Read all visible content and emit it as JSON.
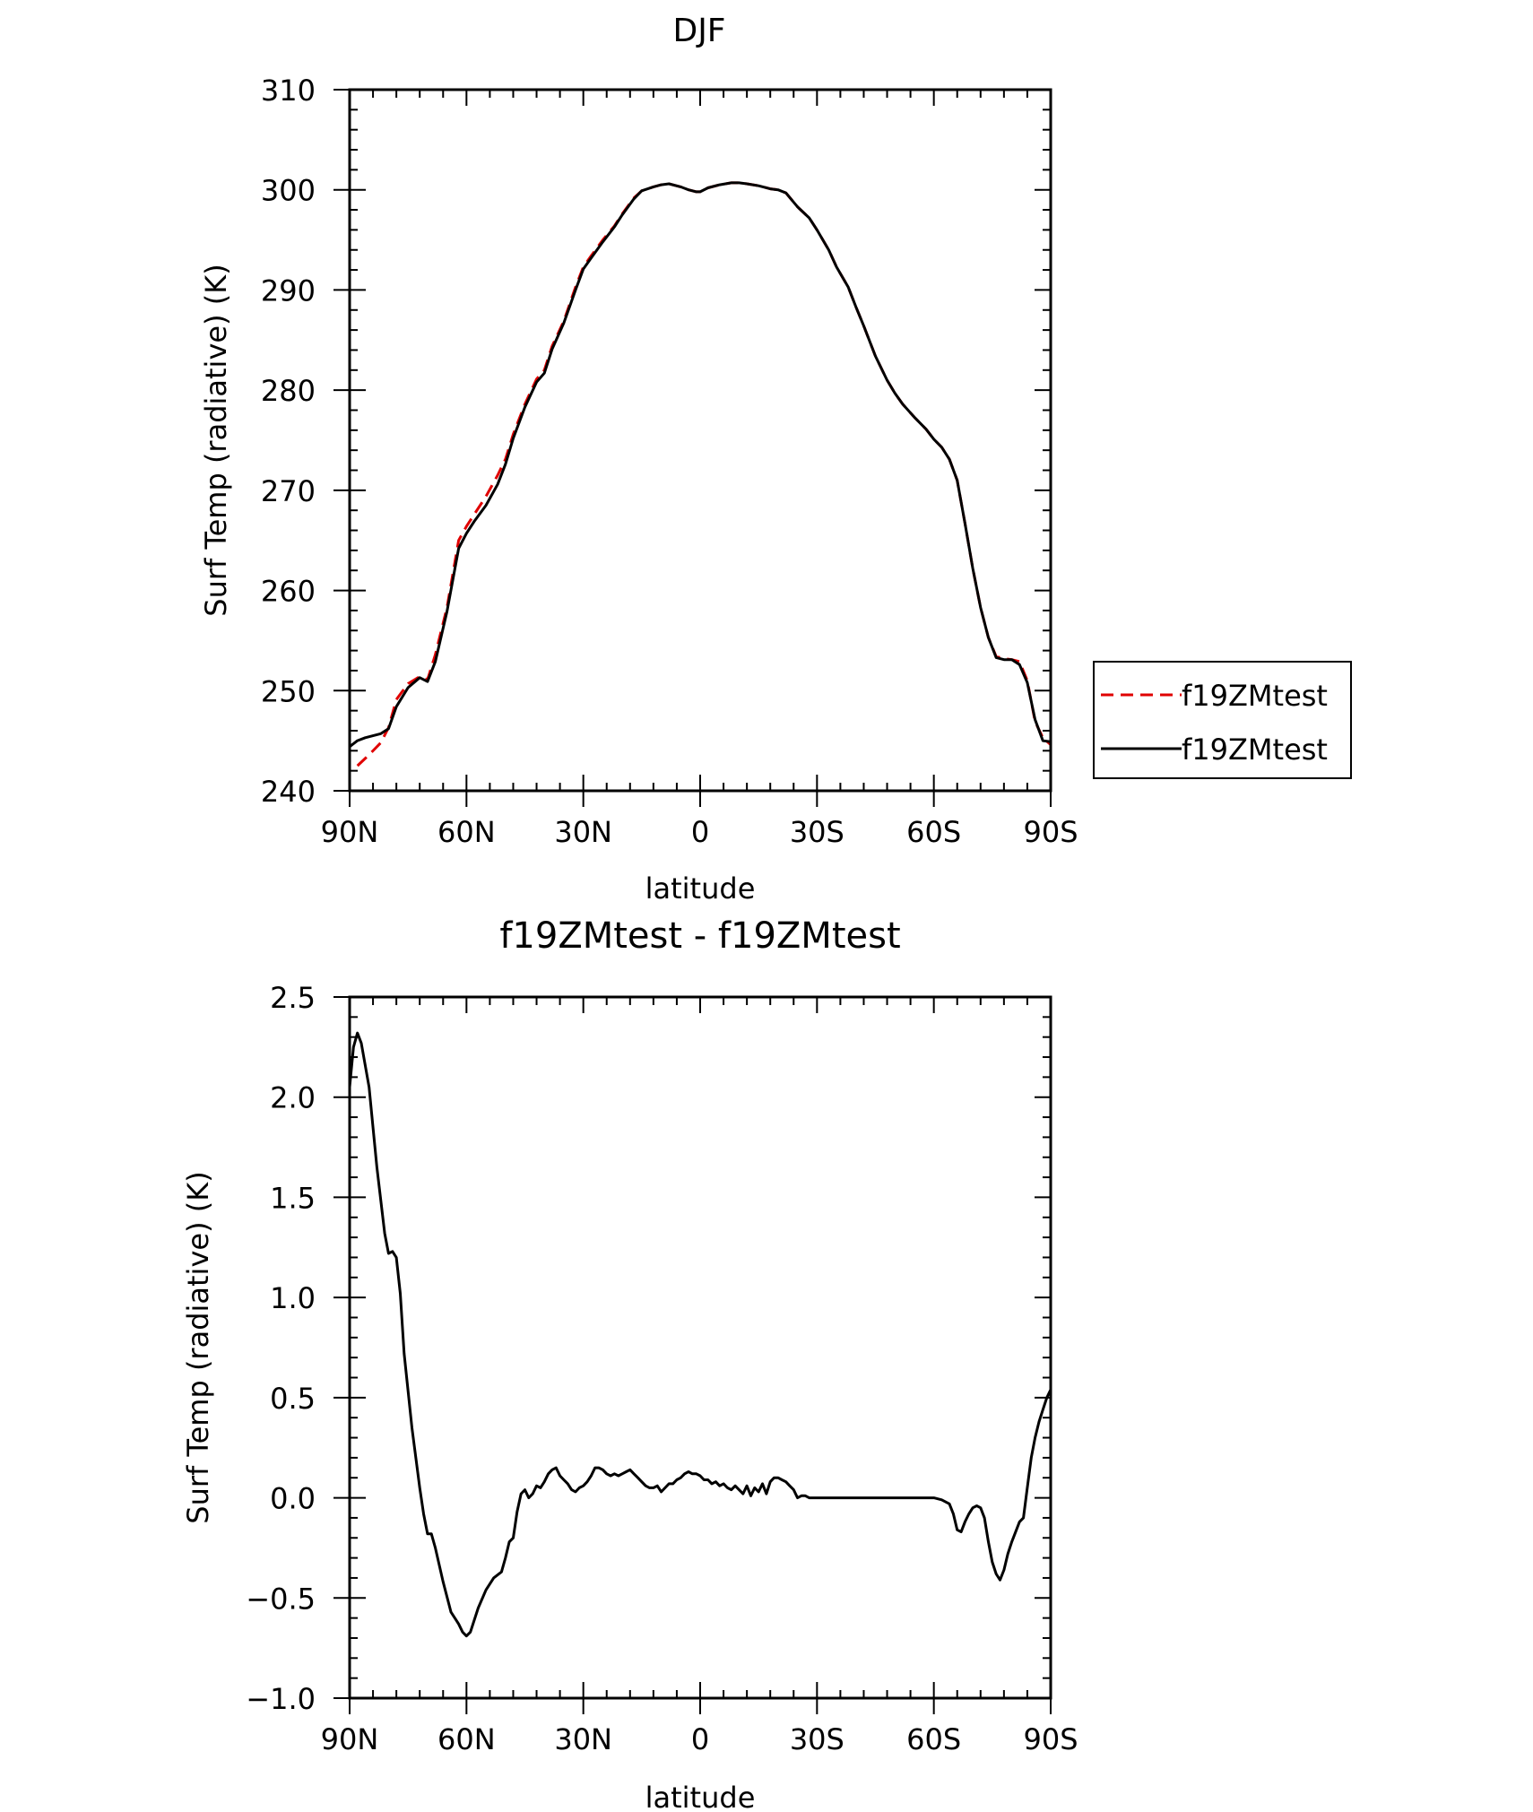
{
  "chart_data": [
    {
      "type": "line",
      "title": "DJF",
      "xlabel": "latitude",
      "ylabel": "Surf Temp (radiative) (K)",
      "xlim": [
        90,
        -90
      ],
      "ylim": [
        240,
        310
      ],
      "x_ticks": [
        90,
        60,
        30,
        0,
        -30,
        -60,
        -90
      ],
      "x_tick_labels": [
        "90N",
        "60N",
        "30N",
        "0",
        "30S",
        "60S",
        "90S"
      ],
      "y_ticks": [
        240,
        250,
        260,
        270,
        280,
        290,
        300,
        310
      ],
      "y_tick_labels": [
        "240",
        "250",
        "260",
        "270",
        "280",
        "290",
        "300",
        "310"
      ],
      "legend_position": "right",
      "series": [
        {
          "name": "f19ZMtest",
          "color": "#e00000",
          "style": "dashed",
          "x": [
            88,
            85,
            82,
            80,
            78,
            75,
            72,
            70,
            68,
            65,
            62,
            60,
            58,
            55,
            52,
            50,
            48,
            45,
            42,
            40,
            38,
            35,
            32,
            30,
            28,
            25,
            22,
            20,
            17,
            15,
            12,
            10,
            8,
            5,
            3,
            1,
            0,
            -2,
            -5,
            -8,
            -10,
            -12,
            -15,
            -18,
            -20,
            -22,
            -25,
            -28,
            -30,
            -33,
            -35,
            -38,
            -40,
            -42,
            -45,
            -48,
            -50,
            -52,
            -55,
            -58,
            -60,
            -62,
            -64,
            -66,
            -68,
            -70,
            -72,
            -74,
            -76,
            -78,
            -80,
            -82,
            -84,
            -86,
            -88,
            -90
          ],
          "y": [
            242.5,
            243.6,
            244.8,
            246.3,
            249.1,
            250.7,
            251.4,
            251.1,
            253.6,
            258.3,
            265.0,
            266.4,
            267.6,
            269.4,
            271.5,
            273.1,
            275.6,
            278.6,
            281.1,
            282.0,
            284.4,
            286.9,
            290.3,
            292.3,
            293.4,
            295.0,
            296.4,
            297.6,
            299.2,
            299.9,
            300.3,
            300.5,
            300.6,
            300.3,
            300.0,
            299.8,
            299.8,
            300.2,
            300.5,
            300.7,
            300.7,
            300.6,
            300.4,
            300.1,
            300.0,
            299.7,
            298.3,
            297.2,
            296.0,
            294.0,
            292.3,
            290.3,
            288.3,
            286.4,
            283.4,
            281.0,
            279.7,
            278.6,
            277.3,
            276.1,
            275.1,
            274.3,
            273.1,
            271.0,
            266.7,
            262.2,
            258.3,
            255.3,
            253.4,
            253.2,
            253.1,
            252.9,
            251.0,
            246.9,
            245.3,
            244.6
          ]
        },
        {
          "name": "f19ZMtest",
          "color": "#000000",
          "style": "solid",
          "x": [
            90,
            88,
            86,
            84,
            82,
            80,
            78,
            75,
            72,
            70,
            68,
            65,
            62,
            60,
            58,
            55,
            52,
            50,
            48,
            45,
            42,
            40,
            38,
            35,
            32,
            30,
            28,
            25,
            22,
            20,
            17,
            15,
            12,
            10,
            8,
            5,
            3,
            1,
            0,
            -2,
            -5,
            -8,
            -10,
            -12,
            -15,
            -18,
            -20,
            -22,
            -25,
            -28,
            -30,
            -33,
            -35,
            -38,
            -40,
            -42,
            -45,
            -48,
            -50,
            -52,
            -55,
            -58,
            -60,
            -62,
            -64,
            -66,
            -68,
            -70,
            -72,
            -74,
            -76,
            -78,
            -80,
            -82,
            -84,
            -86,
            -88,
            -90
          ],
          "y": [
            244.4,
            245.0,
            245.3,
            245.5,
            245.7,
            246.2,
            248.4,
            250.3,
            251.3,
            250.9,
            252.9,
            257.9,
            264.2,
            265.7,
            266.9,
            268.5,
            270.6,
            272.6,
            275.2,
            278.3,
            280.8,
            281.7,
            284.1,
            286.7,
            290.0,
            292.1,
            293.2,
            294.8,
            296.3,
            297.5,
            299.1,
            299.9,
            300.3,
            300.5,
            300.6,
            300.3,
            300.0,
            299.8,
            299.8,
            300.2,
            300.5,
            300.7,
            300.7,
            300.6,
            300.4,
            300.1,
            300.0,
            299.7,
            298.3,
            297.2,
            296.0,
            294.0,
            292.3,
            290.3,
            288.3,
            286.4,
            283.4,
            281.0,
            279.7,
            278.6,
            277.3,
            276.1,
            275.1,
            274.3,
            273.1,
            271.0,
            266.7,
            262.2,
            258.3,
            255.3,
            253.3,
            253.1,
            253.1,
            252.6,
            250.8,
            247.1,
            245.0,
            244.9
          ]
        }
      ]
    },
    {
      "type": "line",
      "title": "f19ZMtest - f19ZMtest",
      "xlabel": "latitude",
      "ylabel": "Surf Temp (radiative) (K)",
      "xlim": [
        90,
        -90
      ],
      "ylim": [
        -1.0,
        2.5
      ],
      "x_ticks": [
        90,
        60,
        30,
        0,
        -30,
        -60,
        -90
      ],
      "x_tick_labels": [
        "90N",
        "60N",
        "30N",
        "0",
        "30S",
        "60S",
        "90S"
      ],
      "y_ticks": [
        -1.0,
        -0.5,
        0.0,
        0.5,
        1.0,
        1.5,
        2.0,
        2.5
      ],
      "y_tick_labels": [
        "−1.0",
        "−0.5",
        "0.0",
        "0.5",
        "1.0",
        "1.5",
        "2.0",
        "2.5"
      ],
      "series": [
        {
          "color": "#000000",
          "style": "solid",
          "x": [
            90,
            89,
            88,
            87,
            85,
            83,
            81,
            80,
            79,
            78,
            77,
            76,
            74,
            72,
            71,
            70,
            69,
            68,
            66,
            64,
            62,
            61,
            60,
            59,
            57,
            55,
            53,
            51,
            50,
            49,
            48,
            47,
            46,
            45,
            44,
            43,
            42,
            41,
            40,
            39,
            38,
            37,
            36,
            35,
            34,
            33,
            32,
            31,
            30,
            29,
            28,
            27,
            26,
            25,
            24,
            23,
            22,
            21,
            20,
            19,
            18,
            17,
            16,
            15,
            14,
            13,
            12,
            11,
            10,
            9,
            8,
            7,
            6,
            5,
            4,
            3,
            2,
            1,
            0,
            -1,
            -2,
            -3,
            -4,
            -5,
            -6,
            -7,
            -8,
            -9,
            -10,
            -11,
            -12,
            -13,
            -14,
            -15,
            -16,
            -17,
            -18,
            -19,
            -20,
            -21,
            -22,
            -23,
            -24,
            -25,
            -26,
            -27,
            -28,
            -29,
            -30,
            -31,
            -32,
            -33,
            -35,
            -37,
            -40,
            -45,
            -50,
            -55,
            -60,
            -62,
            -64,
            -65,
            -66,
            -67,
            -68,
            -69,
            -70,
            -71,
            -72,
            -73,
            -74,
            -75,
            -76,
            -77,
            -78,
            -79,
            -80,
            -81,
            -82,
            -83,
            -84,
            -85,
            -86,
            -87,
            -88,
            -89,
            -90
          ],
          "y": [
            2.05,
            2.25,
            2.32,
            2.27,
            2.05,
            1.65,
            1.32,
            1.22,
            1.23,
            1.2,
            1.02,
            0.72,
            0.35,
            0.05,
            -0.08,
            -0.18,
            -0.18,
            -0.25,
            -0.42,
            -0.57,
            -0.63,
            -0.67,
            -0.69,
            -0.67,
            -0.55,
            -0.46,
            -0.4,
            -0.37,
            -0.3,
            -0.22,
            -0.2,
            -0.07,
            0.02,
            0.04,
            0.0,
            0.02,
            0.06,
            0.05,
            0.08,
            0.12,
            0.14,
            0.15,
            0.11,
            0.09,
            0.07,
            0.04,
            0.03,
            0.05,
            0.06,
            0.08,
            0.11,
            0.15,
            0.15,
            0.14,
            0.12,
            0.11,
            0.12,
            0.11,
            0.12,
            0.13,
            0.14,
            0.12,
            0.1,
            0.08,
            0.06,
            0.05,
            0.05,
            0.06,
            0.03,
            0.05,
            0.07,
            0.07,
            0.09,
            0.1,
            0.12,
            0.13,
            0.12,
            0.12,
            0.11,
            0.09,
            0.09,
            0.07,
            0.08,
            0.06,
            0.07,
            0.05,
            0.04,
            0.06,
            0.04,
            0.02,
            0.06,
            0.01,
            0.05,
            0.03,
            0.07,
            0.02,
            0.08,
            0.1,
            0.1,
            0.09,
            0.08,
            0.06,
            0.04,
            0.0,
            0.01,
            0.01,
            0.0,
            0.0,
            0.0,
            0.0,
            0.0,
            0.0,
            0.0,
            0.0,
            0.0,
            0.0,
            0.0,
            0.0,
            0.0,
            -0.01,
            -0.03,
            -0.08,
            -0.16,
            -0.17,
            -0.12,
            -0.08,
            -0.05,
            -0.04,
            -0.05,
            -0.1,
            -0.22,
            -0.32,
            -0.38,
            -0.41,
            -0.36,
            -0.28,
            -0.22,
            -0.17,
            -0.12,
            -0.1,
            0.05,
            0.2,
            0.3,
            0.38,
            0.44,
            0.5,
            0.54
          ]
        }
      ]
    }
  ]
}
